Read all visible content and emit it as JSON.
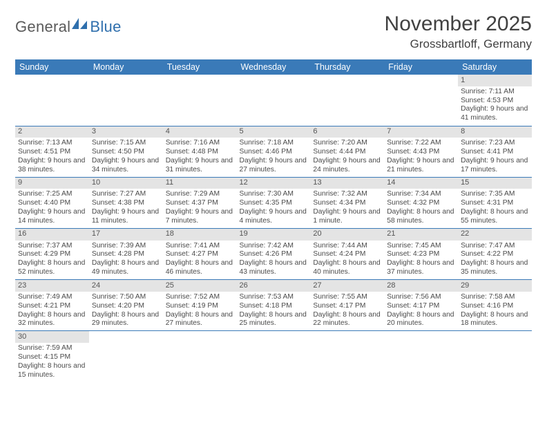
{
  "logo": {
    "text1": "General",
    "text2": "Blue"
  },
  "title": "November 2025",
  "subtitle": "Grossbartloff, Germany",
  "colors": {
    "header_bg": "#3a7ab8",
    "header_fg": "#ffffff",
    "row_divider": "#3a7ab8",
    "daynum_bg": "#e4e4e4",
    "text": "#4a4a4a",
    "title": "#414141",
    "logo_gray": "#5a5a5a",
    "logo_blue": "#2f6fad",
    "page_bg": "#ffffff"
  },
  "typography": {
    "title_size_pt": 22,
    "subtitle_size_pt": 13,
    "header_size_pt": 9.5,
    "cell_size_pt": 7.8,
    "daynum_size_pt": 8.3
  },
  "weekdays": [
    "Sunday",
    "Monday",
    "Tuesday",
    "Wednesday",
    "Thursday",
    "Friday",
    "Saturday"
  ],
  "weeks": [
    [
      null,
      null,
      null,
      null,
      null,
      null,
      {
        "n": "1",
        "sunrise": "Sunrise: 7:11 AM",
        "sunset": "Sunset: 4:53 PM",
        "daylight": "Daylight: 9 hours and 41 minutes."
      }
    ],
    [
      {
        "n": "2",
        "sunrise": "Sunrise: 7:13 AM",
        "sunset": "Sunset: 4:51 PM",
        "daylight": "Daylight: 9 hours and 38 minutes."
      },
      {
        "n": "3",
        "sunrise": "Sunrise: 7:15 AM",
        "sunset": "Sunset: 4:50 PM",
        "daylight": "Daylight: 9 hours and 34 minutes."
      },
      {
        "n": "4",
        "sunrise": "Sunrise: 7:16 AM",
        "sunset": "Sunset: 4:48 PM",
        "daylight": "Daylight: 9 hours and 31 minutes."
      },
      {
        "n": "5",
        "sunrise": "Sunrise: 7:18 AM",
        "sunset": "Sunset: 4:46 PM",
        "daylight": "Daylight: 9 hours and 27 minutes."
      },
      {
        "n": "6",
        "sunrise": "Sunrise: 7:20 AM",
        "sunset": "Sunset: 4:44 PM",
        "daylight": "Daylight: 9 hours and 24 minutes."
      },
      {
        "n": "7",
        "sunrise": "Sunrise: 7:22 AM",
        "sunset": "Sunset: 4:43 PM",
        "daylight": "Daylight: 9 hours and 21 minutes."
      },
      {
        "n": "8",
        "sunrise": "Sunrise: 7:23 AM",
        "sunset": "Sunset: 4:41 PM",
        "daylight": "Daylight: 9 hours and 17 minutes."
      }
    ],
    [
      {
        "n": "9",
        "sunrise": "Sunrise: 7:25 AM",
        "sunset": "Sunset: 4:40 PM",
        "daylight": "Daylight: 9 hours and 14 minutes."
      },
      {
        "n": "10",
        "sunrise": "Sunrise: 7:27 AM",
        "sunset": "Sunset: 4:38 PM",
        "daylight": "Daylight: 9 hours and 11 minutes."
      },
      {
        "n": "11",
        "sunrise": "Sunrise: 7:29 AM",
        "sunset": "Sunset: 4:37 PM",
        "daylight": "Daylight: 9 hours and 7 minutes."
      },
      {
        "n": "12",
        "sunrise": "Sunrise: 7:30 AM",
        "sunset": "Sunset: 4:35 PM",
        "daylight": "Daylight: 9 hours and 4 minutes."
      },
      {
        "n": "13",
        "sunrise": "Sunrise: 7:32 AM",
        "sunset": "Sunset: 4:34 PM",
        "daylight": "Daylight: 9 hours and 1 minute."
      },
      {
        "n": "14",
        "sunrise": "Sunrise: 7:34 AM",
        "sunset": "Sunset: 4:32 PM",
        "daylight": "Daylight: 8 hours and 58 minutes."
      },
      {
        "n": "15",
        "sunrise": "Sunrise: 7:35 AM",
        "sunset": "Sunset: 4:31 PM",
        "daylight": "Daylight: 8 hours and 55 minutes."
      }
    ],
    [
      {
        "n": "16",
        "sunrise": "Sunrise: 7:37 AM",
        "sunset": "Sunset: 4:29 PM",
        "daylight": "Daylight: 8 hours and 52 minutes."
      },
      {
        "n": "17",
        "sunrise": "Sunrise: 7:39 AM",
        "sunset": "Sunset: 4:28 PM",
        "daylight": "Daylight: 8 hours and 49 minutes."
      },
      {
        "n": "18",
        "sunrise": "Sunrise: 7:41 AM",
        "sunset": "Sunset: 4:27 PM",
        "daylight": "Daylight: 8 hours and 46 minutes."
      },
      {
        "n": "19",
        "sunrise": "Sunrise: 7:42 AM",
        "sunset": "Sunset: 4:26 PM",
        "daylight": "Daylight: 8 hours and 43 minutes."
      },
      {
        "n": "20",
        "sunrise": "Sunrise: 7:44 AM",
        "sunset": "Sunset: 4:24 PM",
        "daylight": "Daylight: 8 hours and 40 minutes."
      },
      {
        "n": "21",
        "sunrise": "Sunrise: 7:45 AM",
        "sunset": "Sunset: 4:23 PM",
        "daylight": "Daylight: 8 hours and 37 minutes."
      },
      {
        "n": "22",
        "sunrise": "Sunrise: 7:47 AM",
        "sunset": "Sunset: 4:22 PM",
        "daylight": "Daylight: 8 hours and 35 minutes."
      }
    ],
    [
      {
        "n": "23",
        "sunrise": "Sunrise: 7:49 AM",
        "sunset": "Sunset: 4:21 PM",
        "daylight": "Daylight: 8 hours and 32 minutes."
      },
      {
        "n": "24",
        "sunrise": "Sunrise: 7:50 AM",
        "sunset": "Sunset: 4:20 PM",
        "daylight": "Daylight: 8 hours and 29 minutes."
      },
      {
        "n": "25",
        "sunrise": "Sunrise: 7:52 AM",
        "sunset": "Sunset: 4:19 PM",
        "daylight": "Daylight: 8 hours and 27 minutes."
      },
      {
        "n": "26",
        "sunrise": "Sunrise: 7:53 AM",
        "sunset": "Sunset: 4:18 PM",
        "daylight": "Daylight: 8 hours and 25 minutes."
      },
      {
        "n": "27",
        "sunrise": "Sunrise: 7:55 AM",
        "sunset": "Sunset: 4:17 PM",
        "daylight": "Daylight: 8 hours and 22 minutes."
      },
      {
        "n": "28",
        "sunrise": "Sunrise: 7:56 AM",
        "sunset": "Sunset: 4:17 PM",
        "daylight": "Daylight: 8 hours and 20 minutes."
      },
      {
        "n": "29",
        "sunrise": "Sunrise: 7:58 AM",
        "sunset": "Sunset: 4:16 PM",
        "daylight": "Daylight: 8 hours and 18 minutes."
      }
    ],
    [
      {
        "n": "30",
        "sunrise": "Sunrise: 7:59 AM",
        "sunset": "Sunset: 4:15 PM",
        "daylight": "Daylight: 8 hours and 15 minutes."
      },
      null,
      null,
      null,
      null,
      null,
      null
    ]
  ]
}
